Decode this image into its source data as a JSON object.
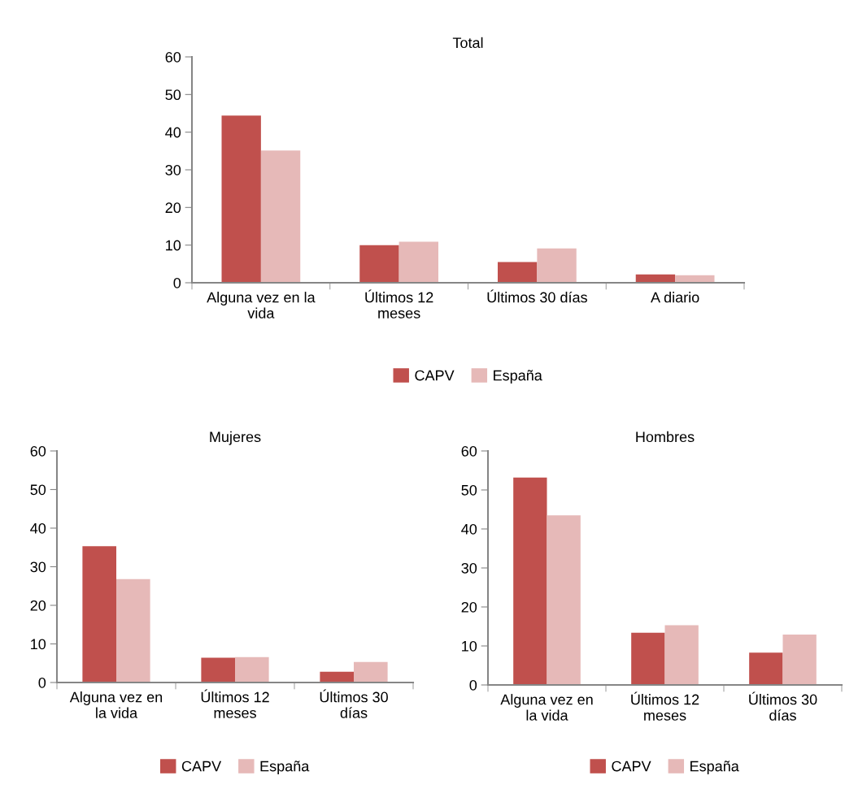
{
  "chart_data": [
    {
      "type": "bar",
      "title": "Total",
      "categories": [
        "Alguna vez en la\nvida",
        "Últimos 12\nmeses",
        "Últimos 30 días",
        "A diario"
      ],
      "ylim": [
        0,
        60
      ],
      "yticks": [
        0,
        10,
        20,
        30,
        40,
        50,
        60
      ],
      "grid": false,
      "legend": "bottom",
      "series": [
        {
          "name": "CAPV",
          "color": "#c0504d",
          "values": [
            44.4,
            10.0,
            5.5,
            2.2
          ]
        },
        {
          "name": "España",
          "color": "#e6b9b8",
          "values": [
            35.1,
            10.9,
            9.1,
            2.0
          ]
        }
      ]
    },
    {
      "type": "bar",
      "title": "Mujeres",
      "categories": [
        "Alguna vez en\nla vida",
        "Últimos 12\nmeses",
        "Últimos 30\ndías"
      ],
      "ylim": [
        0,
        60
      ],
      "yticks": [
        0,
        10,
        20,
        30,
        40,
        50,
        60
      ],
      "grid": false,
      "legend": "bottom",
      "series": [
        {
          "name": "CAPV",
          "color": "#c0504d",
          "values": [
            35.3,
            6.4,
            2.8
          ]
        },
        {
          "name": "España",
          "color": "#e6b9b8",
          "values": [
            26.8,
            6.6,
            5.3
          ]
        }
      ]
    },
    {
      "type": "bar",
      "title": "Hombres",
      "categories": [
        "Alguna vez en\nla vida",
        "Últimos 12\nmeses",
        "Últimos 30\ndías"
      ],
      "ylim": [
        0,
        60
      ],
      "yticks": [
        0,
        10,
        20,
        30,
        40,
        50,
        60
      ],
      "grid": false,
      "legend": "bottom",
      "series": [
        {
          "name": "CAPV",
          "color": "#c0504d",
          "values": [
            53.2,
            13.4,
            8.3
          ]
        },
        {
          "name": "España",
          "color": "#e6b9b8",
          "values": [
            43.5,
            15.3,
            12.9
          ]
        }
      ]
    }
  ]
}
